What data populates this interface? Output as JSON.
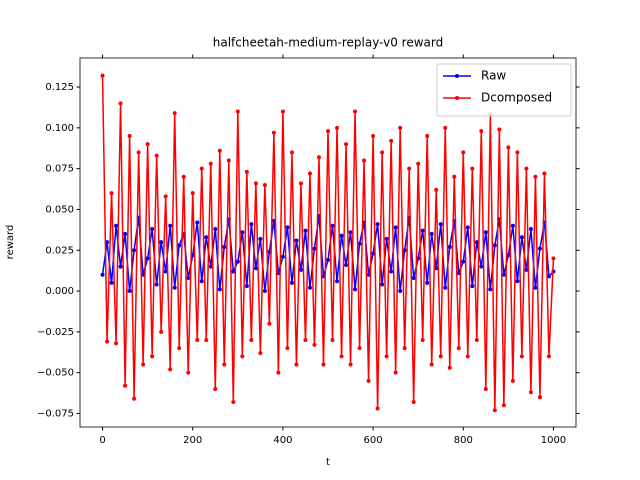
{
  "chart_data": {
    "type": "line",
    "title": "halfcheetah-medium-replay-v0 reward",
    "x_label": "t",
    "y_label": "reward",
    "x": [
      0,
      10,
      20,
      30,
      40,
      50,
      60,
      70,
      80,
      90,
      100,
      110,
      120,
      130,
      140,
      150,
      160,
      170,
      180,
      190,
      200,
      210,
      220,
      230,
      240,
      250,
      260,
      270,
      280,
      290,
      300,
      310,
      320,
      330,
      340,
      350,
      360,
      370,
      380,
      390,
      400,
      410,
      420,
      430,
      440,
      450,
      460,
      470,
      480,
      490,
      500,
      510,
      520,
      530,
      540,
      550,
      560,
      570,
      580,
      590,
      600,
      610,
      620,
      630,
      640,
      650,
      660,
      670,
      680,
      690,
      700,
      710,
      720,
      730,
      740,
      750,
      760,
      770,
      780,
      790,
      800,
      810,
      820,
      830,
      840,
      850,
      860,
      870,
      880,
      890,
      900,
      910,
      920,
      930,
      940,
      950,
      960,
      970,
      980,
      990,
      1000
    ],
    "series": [
      {
        "name": "Raw",
        "color": "#0000ff",
        "values": [
          0.01,
          0.03,
          0.005,
          0.04,
          0.015,
          0.035,
          0.0,
          0.025,
          0.045,
          0.01,
          0.02,
          0.038,
          0.004,
          0.03,
          0.012,
          0.04,
          0.002,
          0.028,
          0.035,
          0.008,
          0.022,
          0.042,
          0.006,
          0.033,
          0.015,
          0.038,
          0.001,
          0.027,
          0.044,
          0.012,
          0.018,
          0.036,
          0.003,
          0.041,
          0.014,
          0.032,
          0.0,
          0.024,
          0.043,
          0.011,
          0.021,
          0.039,
          0.005,
          0.031,
          0.013,
          0.037,
          0.002,
          0.026,
          0.046,
          0.009,
          0.019,
          0.04,
          0.006,
          0.034,
          0.016,
          0.036,
          0.001,
          0.029,
          0.042,
          0.01,
          0.023,
          0.041,
          0.004,
          0.032,
          0.012,
          0.039,
          0.0,
          0.025,
          0.045,
          0.008,
          0.02,
          0.037,
          0.005,
          0.035,
          0.014,
          0.041,
          0.002,
          0.027,
          0.043,
          0.011,
          0.018,
          0.039,
          0.003,
          0.03,
          0.015,
          0.036,
          0.001,
          0.028,
          0.044,
          0.01,
          0.022,
          0.04,
          0.006,
          0.033,
          0.013,
          0.038,
          0.002,
          0.026,
          0.042,
          0.009,
          0.012
        ]
      },
      {
        "name": "Dcomposed",
        "color": "#ff0000",
        "values": [
          0.132,
          -0.031,
          0.06,
          -0.032,
          0.115,
          -0.058,
          0.095,
          -0.066,
          0.085,
          -0.045,
          0.09,
          -0.04,
          0.083,
          -0.025,
          0.058,
          -0.048,
          0.109,
          -0.035,
          0.07,
          -0.05,
          0.06,
          -0.03,
          0.075,
          -0.03,
          0.078,
          -0.06,
          0.086,
          -0.045,
          0.08,
          -0.068,
          0.11,
          -0.04,
          0.073,
          -0.03,
          0.066,
          -0.038,
          0.065,
          -0.02,
          0.097,
          -0.05,
          0.11,
          -0.035,
          0.085,
          -0.045,
          0.066,
          -0.03,
          0.072,
          -0.033,
          0.082,
          -0.045,
          0.098,
          -0.03,
          0.1,
          -0.04,
          0.09,
          -0.045,
          0.11,
          -0.035,
          0.08,
          -0.055,
          0.095,
          -0.072,
          0.085,
          -0.04,
          0.092,
          -0.05,
          0.1,
          -0.035,
          0.075,
          -0.068,
          0.078,
          -0.03,
          0.095,
          -0.045,
          0.062,
          -0.04,
          0.1,
          -0.047,
          0.07,
          -0.035,
          0.085,
          -0.04,
          0.075,
          -0.03,
          0.098,
          -0.06,
          0.108,
          -0.073,
          0.099,
          -0.07,
          0.088,
          -0.055,
          0.085,
          -0.04,
          0.075,
          -0.062,
          0.07,
          -0.065,
          0.072,
          -0.04,
          0.02
        ]
      }
    ],
    "xlim": [
      -50,
      1050
    ],
    "xticks": [
      0,
      200,
      400,
      600,
      800,
      1000
    ],
    "ylim": [
      -0.0833,
      0.1428
    ],
    "yticks": [
      {
        "value": -0.075,
        "label": "−0.075"
      },
      {
        "value": -0.05,
        "label": "−0.050"
      },
      {
        "value": -0.025,
        "label": "−0.025"
      },
      {
        "value": 0,
        "label": "0.000"
      },
      0.025,
      {
        "value": 0.05,
        "label": "0.050"
      },
      0.075,
      {
        "value": 0.1,
        "label": "0.100"
      },
      0.125
    ],
    "legend": "upper right",
    "markers": true
  }
}
